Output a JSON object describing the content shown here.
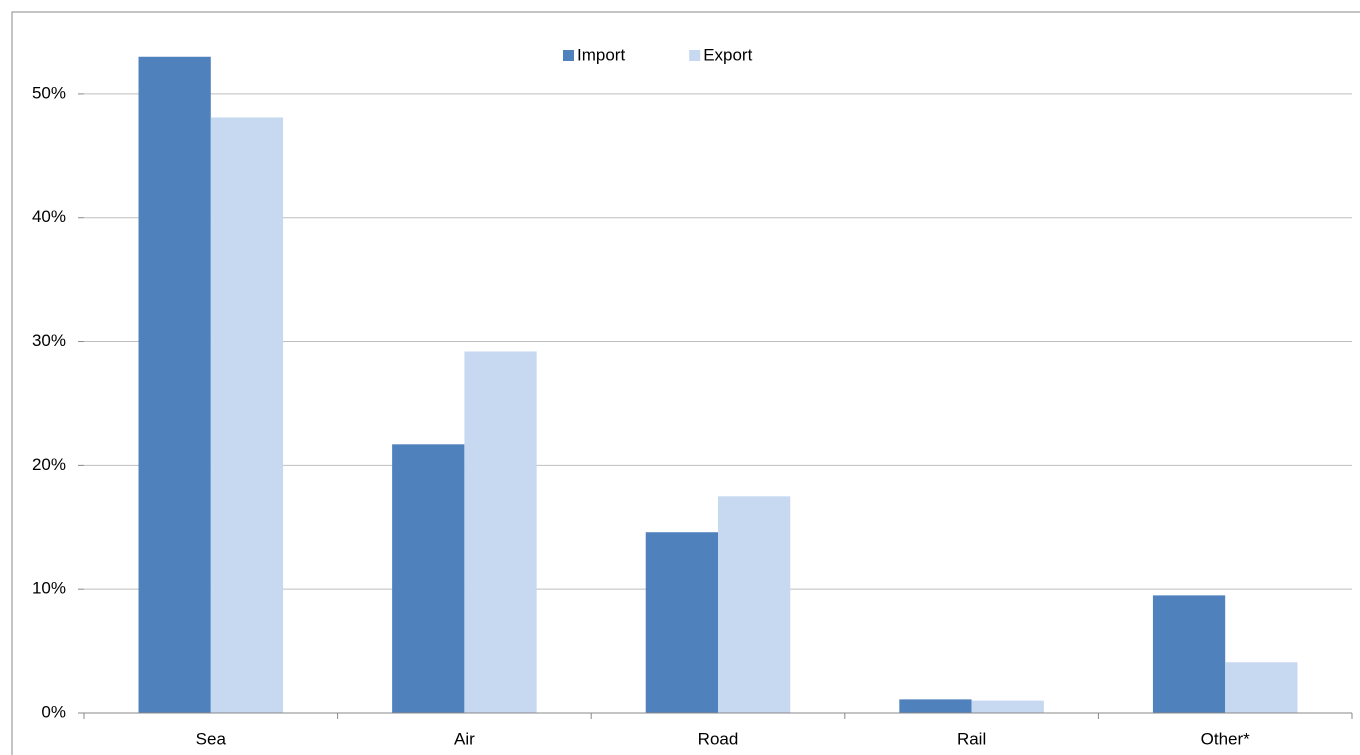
{
  "chart_data": {
    "type": "bar",
    "categories": [
      "Sea",
      "Air",
      "Road",
      "Rail",
      "Other*"
    ],
    "series": [
      {
        "name": "Import",
        "color": "#4f81bd",
        "values": [
          53.0,
          21.7,
          14.6,
          1.1,
          9.5
        ]
      },
      {
        "name": "Export",
        "color": "#c6d9f1",
        "values": [
          48.1,
          29.2,
          17.5,
          1.0,
          4.1
        ]
      }
    ],
    "ylim": [
      0,
      55
    ],
    "yticks": [
      {
        "value": 0,
        "label": "0%"
      },
      {
        "value": 10,
        "label": "10%"
      },
      {
        "value": 20,
        "label": "20%"
      },
      {
        "value": 30,
        "label": "30%"
      },
      {
        "value": 40,
        "label": "40%"
      },
      {
        "value": 50,
        "label": "50%"
      }
    ],
    "grid": true,
    "legend": "top"
  }
}
